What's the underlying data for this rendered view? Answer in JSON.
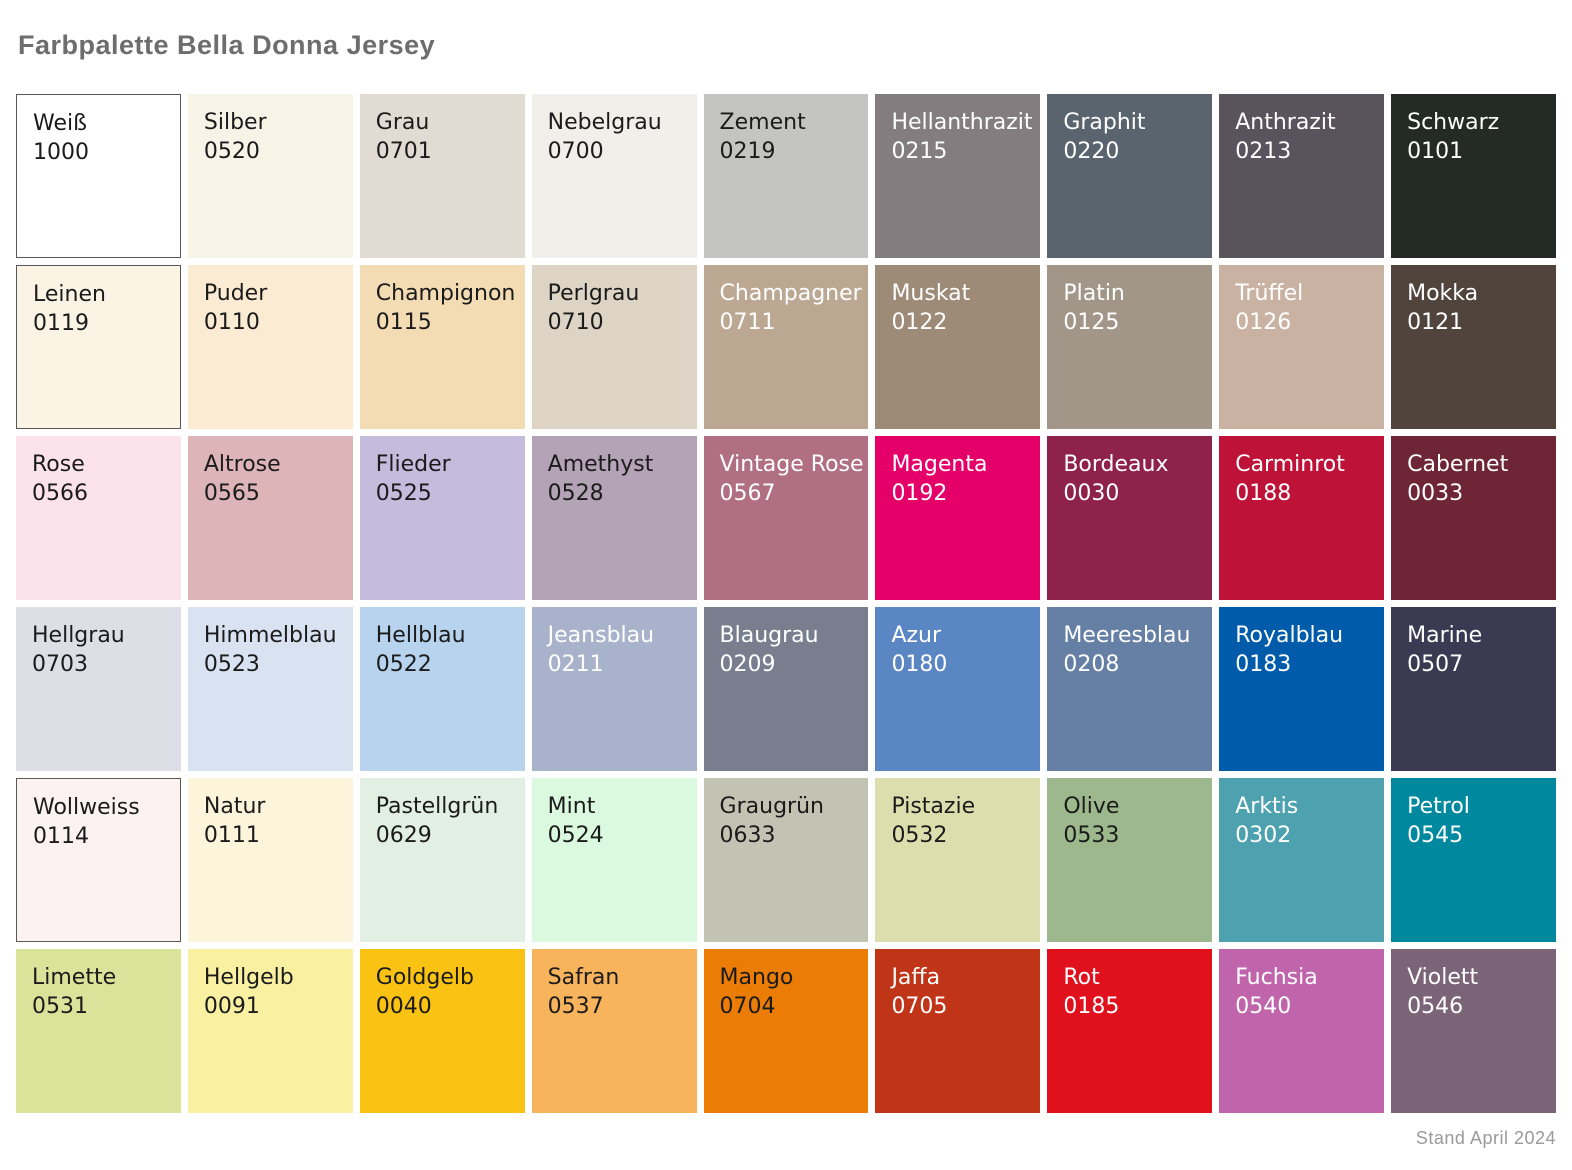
{
  "page": {
    "title": "Farbpalette Bella Donna Jersey",
    "footer": "Stand April 2024"
  },
  "chart_data": {
    "type": "table",
    "title": "Farbpalette Bella Donna Jersey",
    "layout": "9 columns x 6 rows of color swatches",
    "rows": [
      [
        {
          "name": "Weiß",
          "code": "1000",
          "bg": "#ffffff",
          "text": "#1b1b1b",
          "border": true
        },
        {
          "name": "Silber",
          "code": "0520",
          "bg": "#f7f3e7",
          "text": "#1b1b1b",
          "border": false
        },
        {
          "name": "Grau",
          "code": "0701",
          "bg": "#e2dbd3",
          "text": "#1b1b1b",
          "border": false
        },
        {
          "name": "Nebelgrau",
          "code": "0700",
          "bg": "#f1efe9",
          "text": "#1b1b1b",
          "border": false
        },
        {
          "name": "Zement",
          "code": "0219",
          "bg": "#c4c4c2",
          "text": "#1b1b1b",
          "border": false
        },
        {
          "name": "Hellanthrazit",
          "code": "0215",
          "bg": "#837d7f",
          "text": "#ffffff",
          "border": false
        },
        {
          "name": "Graphit",
          "code": "0220",
          "bg": "#5a646e",
          "text": "#ffffff",
          "border": false
        },
        {
          "name": "Anthrazit",
          "code": "0213",
          "bg": "#59535d",
          "text": "#ffffff",
          "border": false
        },
        {
          "name": "Schwarz",
          "code": "0101",
          "bg": "#242a26",
          "text": "#ffffff",
          "border": false
        }
      ],
      [
        {
          "name": "Leinen",
          "code": "0119",
          "bg": "#fbf4e5",
          "text": "#1b1b1b",
          "border": true
        },
        {
          "name": "Puder",
          "code": "0110",
          "bg": "#fbebd3",
          "text": "#1b1b1b",
          "border": false
        },
        {
          "name": "Champignon",
          "code": "0115",
          "bg": "#f3dbb3",
          "text": "#1b1b1b",
          "border": false
        },
        {
          "name": "Perlgrau",
          "code": "0710",
          "bg": "#ddd4c5",
          "text": "#1b1b1b",
          "border": false
        },
        {
          "name": "Champagner",
          "code": "0711",
          "bg": "#bca892",
          "text": "#ffffff",
          "border": false
        },
        {
          "name": "Muskat",
          "code": "0122",
          "bg": "#9d8a77",
          "text": "#ffffff",
          "border": false
        },
        {
          "name": "Platin",
          "code": "0125",
          "bg": "#a29689",
          "text": "#ffffff",
          "border": false
        },
        {
          "name": "Trüffel",
          "code": "0126",
          "bg": "#cab2a3",
          "text": "#ffffff",
          "border": false
        },
        {
          "name": "Mokka",
          "code": "0121",
          "bg": "#50443c",
          "text": "#ffffff",
          "border": false
        }
      ],
      [
        {
          "name": "Rose",
          "code": "0566",
          "bg": "#fce2eb",
          "text": "#1b1b1b",
          "border": false
        },
        {
          "name": "Altrose",
          "code": "0565",
          "bg": "#ddb5b9",
          "text": "#1b1b1b",
          "border": false
        },
        {
          "name": "Flieder",
          "code": "0525",
          "bg": "#c5bbdd",
          "text": "#1b1b1b",
          "border": false
        },
        {
          "name": "Amethyst",
          "code": "0528",
          "bg": "#b4a2b6",
          "text": "#1b1b1b",
          "border": false
        },
        {
          "name": "Vintage Rose",
          "code": "0567",
          "bg": "#b06f82",
          "text": "#ffffff",
          "border": false
        },
        {
          "name": "Magenta",
          "code": "0192",
          "bg": "#e50069",
          "text": "#ffffff",
          "border": false
        },
        {
          "name": "Bordeaux",
          "code": "0030",
          "bg": "#8e2248",
          "text": "#ffffff",
          "border": false
        },
        {
          "name": "Carminrot",
          "code": "0188",
          "bg": "#be1238",
          "text": "#ffffff",
          "border": false
        },
        {
          "name": "Cabernet",
          "code": "0033",
          "bg": "#6e2637",
          "text": "#ffffff",
          "border": false
        }
      ],
      [
        {
          "name": "Hellgrau",
          "code": "0703",
          "bg": "#dce0e6",
          "text": "#1b1b1b",
          "border": false
        },
        {
          "name": "Himmelblau",
          "code": "0523",
          "bg": "#d9e2f0",
          "text": "#1b1b1b",
          "border": false
        },
        {
          "name": "Hellblau",
          "code": "0522",
          "bg": "#b7d3ee",
          "text": "#1b1b1b",
          "border": false
        },
        {
          "name": "Jeansblau",
          "code": "0211",
          "bg": "#a8b2cb",
          "text": "#ffffff",
          "border": false
        },
        {
          "name": "Blaugrau",
          "code": "0209",
          "bg": "#797e8f",
          "text": "#ffffff",
          "border": false
        },
        {
          "name": "Azur",
          "code": "0180",
          "bg": "#5a86c4",
          "text": "#ffffff",
          "border": false
        },
        {
          "name": "Meeresblau",
          "code": "0208",
          "bg": "#6580a4",
          "text": "#ffffff",
          "border": false
        },
        {
          "name": "Royalblau",
          "code": "0183",
          "bg": "#005cab",
          "text": "#ffffff",
          "border": false
        },
        {
          "name": "Marine",
          "code": "0507",
          "bg": "#3b3a52",
          "text": "#ffffff",
          "border": false
        }
      ],
      [
        {
          "name": "Wollweiss",
          "code": "0114",
          "bg": "#fbf2f1",
          "text": "#1b1b1b",
          "border": true
        },
        {
          "name": "Natur",
          "code": "0111",
          "bg": "#fcf4db",
          "text": "#1b1b1b",
          "border": false
        },
        {
          "name": "Pastellgrün",
          "code": "0629",
          "bg": "#e2f0e3",
          "text": "#1b1b1b",
          "border": false
        },
        {
          "name": "Mint",
          "code": "0524",
          "bg": "#dbf9df",
          "text": "#1b1b1b",
          "border": false
        },
        {
          "name": "Graugrün",
          "code": "0633",
          "bg": "#c3c3b3",
          "text": "#1b1b1b",
          "border": false
        },
        {
          "name": "Pistazie",
          "code": "0532",
          "bg": "#dcdfad",
          "text": "#1b1b1b",
          "border": false
        },
        {
          "name": "Olive",
          "code": "0533",
          "bg": "#9cb88c",
          "text": "#1b1b1b",
          "border": false
        },
        {
          "name": "Arktis",
          "code": "0302",
          "bg": "#4ea2b0",
          "text": "#ffffff",
          "border": false
        },
        {
          "name": "Petrol",
          "code": "0545",
          "bg": "#00889e",
          "text": "#ffffff",
          "border": false
        }
      ],
      [
        {
          "name": "Limette",
          "code": "0531",
          "bg": "#dbe29a",
          "text": "#1b1b1b",
          "border": false
        },
        {
          "name": "Hellgelb",
          "code": "0091",
          "bg": "#faf0a2",
          "text": "#1b1b1b",
          "border": false
        },
        {
          "name": "Goldgelb",
          "code": "0040",
          "bg": "#fac213",
          "text": "#1b1b1b",
          "border": false
        },
        {
          "name": "Safran",
          "code": "0537",
          "bg": "#f8b45c",
          "text": "#1b1b1b",
          "border": false
        },
        {
          "name": "Mango",
          "code": "0704",
          "bg": "#eb7d07",
          "text": "#1b1b1b",
          "border": false
        },
        {
          "name": "Jaffa",
          "code": "0705",
          "bg": "#c03418",
          "text": "#ffffff",
          "border": false
        },
        {
          "name": "Rot",
          "code": "0185",
          "bg": "#e1101d",
          "text": "#ffffff",
          "border": false
        },
        {
          "name": "Fuchsia",
          "code": "0540",
          "bg": "#c064ab",
          "text": "#ffffff",
          "border": false
        },
        {
          "name": "Violett",
          "code": "0546",
          "bg": "#7c6478",
          "text": "#ffffff",
          "border": false
        }
      ]
    ]
  }
}
